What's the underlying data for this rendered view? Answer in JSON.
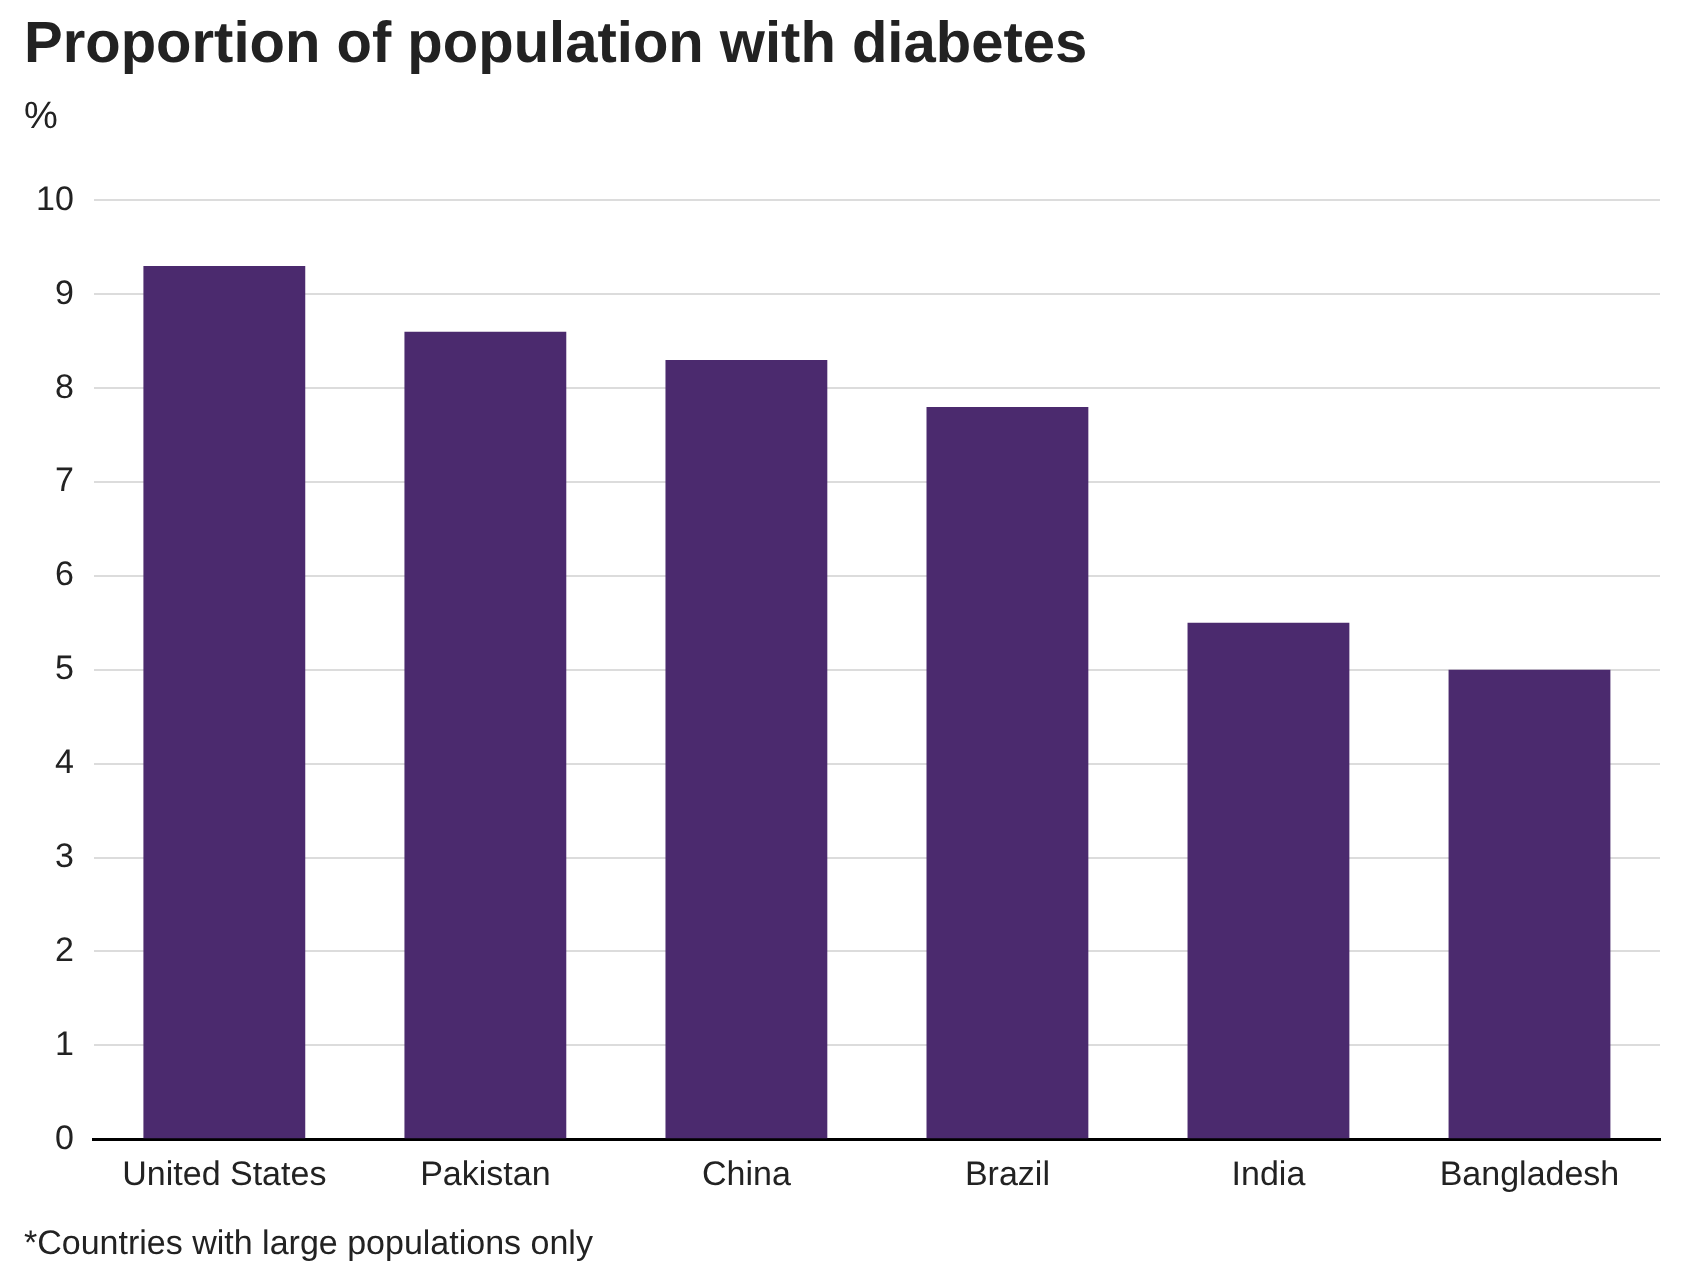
{
  "chart_data": {
    "type": "bar",
    "title": "Proportion of population with diabetes",
    "ylabel": "%",
    "categories": [
      "United States",
      "Pakistan",
      "China",
      "Brazil",
      "India",
      "Bangladesh"
    ],
    "values": [
      9.3,
      8.6,
      8.3,
      7.8,
      5.5,
      5.0
    ],
    "color": "#4b2a6e",
    "ylim": [
      0,
      10
    ],
    "yticks": [
      0,
      1,
      2,
      3,
      4,
      5,
      6,
      7,
      8,
      9,
      10
    ],
    "grid": "y",
    "legend": false,
    "annotations": [
      "*Countries with large populations only"
    ]
  }
}
